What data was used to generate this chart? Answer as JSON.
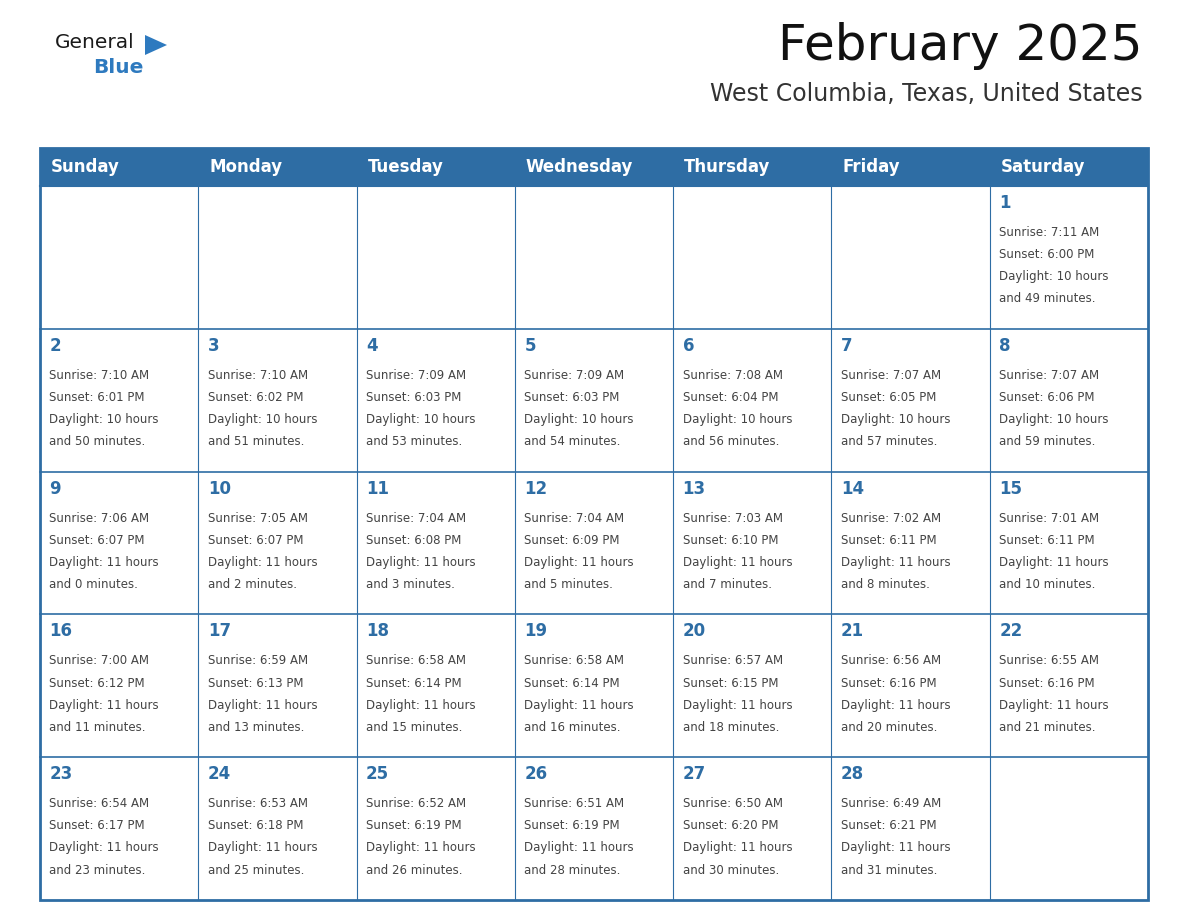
{
  "title": "February 2025",
  "subtitle": "West Columbia, Texas, United States",
  "days_of_week": [
    "Sunday",
    "Monday",
    "Tuesday",
    "Wednesday",
    "Thursday",
    "Friday",
    "Saturday"
  ],
  "header_bg": "#2e6da4",
  "header_text": "#ffffff",
  "cell_bg": "#ffffff",
  "border_color": "#2e6da4",
  "day_number_color": "#2e6da4",
  "text_color": "#444444",
  "logo_general_color": "#1a1a1a",
  "logo_blue_color": "#2e7abf",
  "calendar_data": [
    [
      null,
      null,
      null,
      null,
      null,
      null,
      {
        "day": 1,
        "sunrise": "7:11 AM",
        "sunset": "6:00 PM",
        "daylight": "10 hours and 49 minutes."
      }
    ],
    [
      {
        "day": 2,
        "sunrise": "7:10 AM",
        "sunset": "6:01 PM",
        "daylight": "10 hours and 50 minutes."
      },
      {
        "day": 3,
        "sunrise": "7:10 AM",
        "sunset": "6:02 PM",
        "daylight": "10 hours and 51 minutes."
      },
      {
        "day": 4,
        "sunrise": "7:09 AM",
        "sunset": "6:03 PM",
        "daylight": "10 hours and 53 minutes."
      },
      {
        "day": 5,
        "sunrise": "7:09 AM",
        "sunset": "6:03 PM",
        "daylight": "10 hours and 54 minutes."
      },
      {
        "day": 6,
        "sunrise": "7:08 AM",
        "sunset": "6:04 PM",
        "daylight": "10 hours and 56 minutes."
      },
      {
        "day": 7,
        "sunrise": "7:07 AM",
        "sunset": "6:05 PM",
        "daylight": "10 hours and 57 minutes."
      },
      {
        "day": 8,
        "sunrise": "7:07 AM",
        "sunset": "6:06 PM",
        "daylight": "10 hours and 59 minutes."
      }
    ],
    [
      {
        "day": 9,
        "sunrise": "7:06 AM",
        "sunset": "6:07 PM",
        "daylight": "11 hours and 0 minutes."
      },
      {
        "day": 10,
        "sunrise": "7:05 AM",
        "sunset": "6:07 PM",
        "daylight": "11 hours and 2 minutes."
      },
      {
        "day": 11,
        "sunrise": "7:04 AM",
        "sunset": "6:08 PM",
        "daylight": "11 hours and 3 minutes."
      },
      {
        "day": 12,
        "sunrise": "7:04 AM",
        "sunset": "6:09 PM",
        "daylight": "11 hours and 5 minutes."
      },
      {
        "day": 13,
        "sunrise": "7:03 AM",
        "sunset": "6:10 PM",
        "daylight": "11 hours and 7 minutes."
      },
      {
        "day": 14,
        "sunrise": "7:02 AM",
        "sunset": "6:11 PM",
        "daylight": "11 hours and 8 minutes."
      },
      {
        "day": 15,
        "sunrise": "7:01 AM",
        "sunset": "6:11 PM",
        "daylight": "11 hours and 10 minutes."
      }
    ],
    [
      {
        "day": 16,
        "sunrise": "7:00 AM",
        "sunset": "6:12 PM",
        "daylight": "11 hours and 11 minutes."
      },
      {
        "day": 17,
        "sunrise": "6:59 AM",
        "sunset": "6:13 PM",
        "daylight": "11 hours and 13 minutes."
      },
      {
        "day": 18,
        "sunrise": "6:58 AM",
        "sunset": "6:14 PM",
        "daylight": "11 hours and 15 minutes."
      },
      {
        "day": 19,
        "sunrise": "6:58 AM",
        "sunset": "6:14 PM",
        "daylight": "11 hours and 16 minutes."
      },
      {
        "day": 20,
        "sunrise": "6:57 AM",
        "sunset": "6:15 PM",
        "daylight": "11 hours and 18 minutes."
      },
      {
        "day": 21,
        "sunrise": "6:56 AM",
        "sunset": "6:16 PM",
        "daylight": "11 hours and 20 minutes."
      },
      {
        "day": 22,
        "sunrise": "6:55 AM",
        "sunset": "6:16 PM",
        "daylight": "11 hours and 21 minutes."
      }
    ],
    [
      {
        "day": 23,
        "sunrise": "6:54 AM",
        "sunset": "6:17 PM",
        "daylight": "11 hours and 23 minutes."
      },
      {
        "day": 24,
        "sunrise": "6:53 AM",
        "sunset": "6:18 PM",
        "daylight": "11 hours and 25 minutes."
      },
      {
        "day": 25,
        "sunrise": "6:52 AM",
        "sunset": "6:19 PM",
        "daylight": "11 hours and 26 minutes."
      },
      {
        "day": 26,
        "sunrise": "6:51 AM",
        "sunset": "6:19 PM",
        "daylight": "11 hours and 28 minutes."
      },
      {
        "day": 27,
        "sunrise": "6:50 AM",
        "sunset": "6:20 PM",
        "daylight": "11 hours and 30 minutes."
      },
      {
        "day": 28,
        "sunrise": "6:49 AM",
        "sunset": "6:21 PM",
        "daylight": "11 hours and 31 minutes."
      },
      null
    ]
  ]
}
